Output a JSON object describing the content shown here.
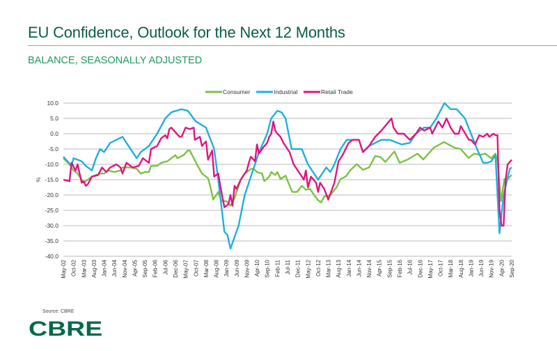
{
  "header": {
    "title": "EU Confidence, Outlook for the Next 12 Months",
    "subtitle": "BALANCE, SEASONALLY ADJUSTED"
  },
  "footer": {
    "source": "Source: CBRE",
    "logo": "CBRE"
  },
  "chart_data": {
    "type": "line",
    "title": "EU Confidence, Outlook for the Next 12 Months",
    "ylabel": "%",
    "xlabel": "",
    "ylim": [
      -40,
      10
    ],
    "yticks": [
      "10.0",
      "5.0",
      "0.0",
      "-5.0",
      "-10.0",
      "-15.0",
      "-20.0",
      "-25.0",
      "-30.0",
      "-35.0",
      "-40.0"
    ],
    "ytick_values": [
      10,
      5,
      0,
      -5,
      -10,
      -15,
      -20,
      -25,
      -30,
      -35,
      -40
    ],
    "x_unit": "months since May-02",
    "xlim": [
      0,
      220
    ],
    "xtick_step_months": 5,
    "xticks": [
      "May-02",
      "Oct-02",
      "Mar-03",
      "Aug-03",
      "Jan-04",
      "Jun-04",
      "Nov-04",
      "Apr-05",
      "Sep-05",
      "Feb-06",
      "Jul-06",
      "Dec-06",
      "May-07",
      "Oct-07",
      "Mar-08",
      "Aug-08",
      "Jan-09",
      "Jun-09",
      "Nov-09",
      "Apr-10",
      "Sep-10",
      "Feb-11",
      "Jul-11",
      "Dec-11",
      "May-12",
      "Oct-12",
      "Mar-13",
      "Aug-13",
      "Jan-14",
      "Jun-14",
      "Nov-14",
      "Apr-15",
      "Sep-15",
      "Feb-16",
      "Jul-16",
      "Dec-16",
      "May-17",
      "Oct-17",
      "Mar-18",
      "Aug-18",
      "Jan-19",
      "Jun-19",
      "Nov-19",
      "Apr-20",
      "Sep-20"
    ],
    "grid": true,
    "legend_position": "top-center",
    "series": [
      {
        "name": "Consumer",
        "color": "#7cc243",
        "points": [
          [
            0,
            -8
          ],
          [
            3,
            -10
          ],
          [
            5,
            -12
          ],
          [
            7,
            -13
          ],
          [
            10,
            -16
          ],
          [
            12,
            -15
          ],
          [
            14,
            -14
          ],
          [
            16,
            -13.5
          ],
          [
            18,
            -13
          ],
          [
            20,
            -13
          ],
          [
            22,
            -12
          ],
          [
            25,
            -12.5
          ],
          [
            28,
            -12
          ],
          [
            29,
            -11
          ],
          [
            33,
            -11
          ],
          [
            36,
            -11.5
          ],
          [
            38,
            -13
          ],
          [
            40,
            -12.5
          ],
          [
            42,
            -12.5
          ],
          [
            43,
            -10.5
          ],
          [
            46,
            -10.5
          ],
          [
            48,
            -9.5
          ],
          [
            51,
            -9
          ],
          [
            53,
            -8
          ],
          [
            55,
            -7
          ],
          [
            56,
            -8
          ],
          [
            59,
            -7
          ],
          [
            61,
            -5.5
          ],
          [
            62,
            -5.5
          ],
          [
            64,
            -8
          ],
          [
            65.5,
            -10
          ],
          [
            68,
            -13
          ],
          [
            71,
            -14.5
          ],
          [
            72,
            -17
          ],
          [
            73.5,
            -21.5
          ],
          [
            76,
            -19
          ],
          [
            77.5,
            -22
          ],
          [
            80,
            -22
          ],
          [
            82,
            -23.5
          ],
          [
            84,
            -21
          ],
          [
            85.5,
            -18
          ],
          [
            87,
            -15
          ],
          [
            89,
            -13
          ],
          [
            91,
            -12
          ],
          [
            92,
            -11.5
          ],
          [
            93.5,
            -11.5
          ],
          [
            95,
            -12.5
          ],
          [
            97.5,
            -13
          ],
          [
            98.6,
            -15.5
          ],
          [
            101,
            -14
          ],
          [
            102,
            -12.5
          ],
          [
            104,
            -13.5
          ],
          [
            105,
            -12.5
          ],
          [
            106.6,
            -14.8
          ],
          [
            109,
            -13.7
          ],
          [
            112.3,
            -19
          ],
          [
            114.6,
            -19
          ],
          [
            117,
            -17
          ],
          [
            119,
            -18.3
          ],
          [
            121,
            -18
          ],
          [
            123,
            -20
          ],
          [
            125,
            -21.7
          ],
          [
            126.5,
            -22.4
          ],
          [
            128,
            -20.5
          ],
          [
            131,
            -20
          ],
          [
            134,
            -17.5
          ],
          [
            136,
            -14.8
          ],
          [
            138.5,
            -14
          ],
          [
            141,
            -11.8
          ],
          [
            144,
            -9.9
          ],
          [
            147,
            -11.8
          ],
          [
            150,
            -11
          ],
          [
            153,
            -7.3
          ],
          [
            155.5,
            -7.6
          ],
          [
            158,
            -9.2
          ],
          [
            162.4,
            -5.8
          ],
          [
            165,
            -9.5
          ],
          [
            169,
            -8.4
          ],
          [
            173.7,
            -6.5
          ],
          [
            176.6,
            -8.4
          ],
          [
            181.7,
            -4.6
          ],
          [
            186.8,
            -2.7
          ],
          [
            192,
            -4.6
          ],
          [
            195,
            -5
          ],
          [
            198.8,
            -7.9
          ],
          [
            201.6,
            -6.5
          ],
          [
            204.5,
            -6.9
          ],
          [
            207,
            -6.5
          ],
          [
            210,
            -8
          ],
          [
            212,
            -6.5
          ],
          [
            213,
            -8.8
          ],
          [
            214.7,
            -22
          ],
          [
            216.4,
            -14.8
          ],
          [
            218,
            -14.8
          ],
          [
            219.5,
            -13.7
          ],
          [
            220,
            -13.5
          ]
        ]
      },
      {
        "name": "Industrial",
        "color": "#1fb0dc",
        "points": [
          [
            0,
            -7.5
          ],
          [
            4,
            -10.5
          ],
          [
            5,
            -8
          ],
          [
            7,
            -8.5
          ],
          [
            9,
            -9
          ],
          [
            11,
            -10.5
          ],
          [
            14,
            -12
          ],
          [
            16,
            -8
          ],
          [
            18,
            -5
          ],
          [
            20,
            -6
          ],
          [
            23,
            -3
          ],
          [
            26,
            -2
          ],
          [
            29,
            -1
          ],
          [
            31,
            -3
          ],
          [
            34,
            -6
          ],
          [
            36,
            -8
          ],
          [
            38,
            -6
          ],
          [
            42,
            -4
          ],
          [
            46,
            0
          ],
          [
            50,
            5
          ],
          [
            53,
            7
          ],
          [
            58,
            8
          ],
          [
            61,
            7.5
          ],
          [
            65,
            4
          ],
          [
            70,
            2
          ],
          [
            74,
            -5
          ],
          [
            76,
            -15
          ],
          [
            79,
            -32
          ],
          [
            80.5,
            -33
          ],
          [
            82,
            -37.5
          ],
          [
            86,
            -30
          ],
          [
            89,
            -20
          ],
          [
            94,
            -10
          ],
          [
            96,
            -6
          ],
          [
            98,
            -3
          ],
          [
            100,
            0
          ],
          [
            102,
            5
          ],
          [
            105,
            7.5
          ],
          [
            107,
            7
          ],
          [
            109,
            5
          ],
          [
            112,
            -5
          ],
          [
            117,
            -5
          ],
          [
            120,
            -10
          ],
          [
            125,
            -15
          ],
          [
            129,
            -11
          ],
          [
            131,
            -12.5
          ],
          [
            133,
            -10
          ],
          [
            136,
            -5
          ],
          [
            139,
            -2
          ],
          [
            145,
            -2
          ],
          [
            147,
            -6
          ],
          [
            150,
            -4
          ],
          [
            156,
            -2
          ],
          [
            160,
            -2
          ],
          [
            166,
            -3.5
          ],
          [
            170,
            -3
          ],
          [
            173,
            0
          ],
          [
            177,
            2
          ],
          [
            180,
            2
          ],
          [
            183,
            5
          ],
          [
            187,
            10
          ],
          [
            190,
            8
          ],
          [
            193,
            8
          ],
          [
            197,
            5
          ],
          [
            200,
            0
          ],
          [
            203,
            -5
          ],
          [
            206,
            -9.5
          ],
          [
            208,
            -9.5
          ],
          [
            210,
            -9
          ],
          [
            212,
            -7
          ],
          [
            214,
            -32.5
          ],
          [
            216,
            -20
          ],
          [
            219,
            -11.5
          ],
          [
            220,
            -11
          ]
        ]
      },
      {
        "name": "Retail Trade",
        "color": "#e0157f",
        "points": [
          [
            0,
            -15
          ],
          [
            3,
            -15.5
          ],
          [
            4,
            -9.5
          ],
          [
            6,
            -12
          ],
          [
            7,
            -10
          ],
          [
            9,
            -16
          ],
          [
            10,
            -15.5
          ],
          [
            11,
            -17
          ],
          [
            12,
            -16.5
          ],
          [
            14,
            -14
          ],
          [
            17,
            -13.5
          ],
          [
            19,
            -11
          ],
          [
            21,
            -12.5
          ],
          [
            23,
            -11
          ],
          [
            26,
            -10
          ],
          [
            28,
            -11
          ],
          [
            29,
            -13
          ],
          [
            31,
            -9.5
          ],
          [
            34,
            -11
          ],
          [
            37,
            -10.5
          ],
          [
            39,
            -8
          ],
          [
            42,
            -9.5
          ],
          [
            43,
            -5
          ],
          [
            46,
            -4
          ],
          [
            48,
            -1.5
          ],
          [
            50,
            -0.5
          ],
          [
            51,
            -1.5
          ],
          [
            52,
            1.5
          ],
          [
            53,
            2
          ],
          [
            57,
            -1
          ],
          [
            58,
            -1
          ],
          [
            60,
            2
          ],
          [
            62,
            1.5
          ],
          [
            64,
            2
          ],
          [
            64.5,
            -2
          ],
          [
            67,
            -1
          ],
          [
            68,
            -4
          ],
          [
            70,
            -2.5
          ],
          [
            71,
            -8.5
          ],
          [
            73,
            -5.5
          ],
          [
            74,
            -14
          ],
          [
            76,
            -13
          ],
          [
            77,
            -17
          ],
          [
            79,
            -24
          ],
          [
            81,
            -23
          ],
          [
            82,
            -20
          ],
          [
            83,
            -23.5
          ],
          [
            84,
            -17
          ],
          [
            85,
            -18
          ],
          [
            87,
            -15
          ],
          [
            88,
            -14
          ],
          [
            90,
            -12
          ],
          [
            91,
            -9.5
          ],
          [
            92,
            -7.5
          ],
          [
            94,
            -9
          ],
          [
            95,
            -3.5
          ],
          [
            96,
            -6.5
          ],
          [
            98,
            -4.5
          ],
          [
            100,
            -3
          ],
          [
            101,
            -1
          ],
          [
            102,
            0
          ],
          [
            103,
            4
          ],
          [
            104,
            1
          ],
          [
            105,
            0
          ],
          [
            106.5,
            -1
          ],
          [
            108,
            -3
          ],
          [
            111,
            -6
          ],
          [
            113,
            -10
          ],
          [
            116,
            -13
          ],
          [
            118,
            -15
          ],
          [
            119,
            -12
          ],
          [
            120,
            -17.5
          ],
          [
            121.5,
            -14
          ],
          [
            124,
            -16
          ],
          [
            125,
            -19
          ],
          [
            126,
            -16
          ],
          [
            128,
            -18
          ],
          [
            130,
            -21.5
          ],
          [
            133,
            -16
          ],
          [
            135,
            -9
          ],
          [
            137,
            -7
          ],
          [
            140,
            -3
          ],
          [
            142,
            -2
          ],
          [
            145,
            -2
          ],
          [
            147,
            -6
          ],
          [
            150,
            -4
          ],
          [
            153,
            -1
          ],
          [
            156,
            1
          ],
          [
            161,
            5
          ],
          [
            162,
            2
          ],
          [
            164,
            0
          ],
          [
            167,
            0
          ],
          [
            170,
            -2
          ],
          [
            173,
            0
          ],
          [
            175,
            2
          ],
          [
            177,
            1
          ],
          [
            180,
            2
          ],
          [
            181,
            0
          ],
          [
            184,
            4
          ],
          [
            186,
            2
          ],
          [
            188,
            5
          ],
          [
            190,
            2
          ],
          [
            192,
            0
          ],
          [
            194,
            0
          ],
          [
            195,
            2.5
          ],
          [
            199,
            -2
          ],
          [
            200,
            -2
          ],
          [
            202,
            -3.5
          ],
          [
            204,
            -0.5
          ],
          [
            206,
            -1
          ],
          [
            208,
            0
          ],
          [
            209,
            -1
          ],
          [
            211,
            0
          ],
          [
            212,
            -0.5
          ],
          [
            213,
            -0.5
          ],
          [
            214,
            -25
          ],
          [
            215,
            -30
          ],
          [
            216,
            -30
          ],
          [
            217,
            -15
          ],
          [
            218,
            -10
          ],
          [
            220,
            -8.5
          ]
        ]
      }
    ]
  }
}
